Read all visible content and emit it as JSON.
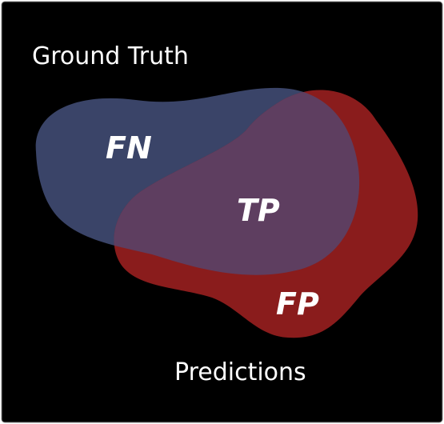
{
  "diagram": {
    "colors": {
      "background": "#000000",
      "ground_truth_fill": "#3a4468",
      "predictions_fill": "#8a1c1c",
      "overlap_fill": "#5e3e60",
      "text": "#ffffff"
    },
    "sets": {
      "ground_truth": {
        "label": "Ground Truth"
      },
      "predictions": {
        "label": "Predictions"
      }
    },
    "regions": {
      "false_negative": {
        "label": "FN"
      },
      "true_positive": {
        "label": "TP"
      },
      "false_positive": {
        "label": "FP"
      }
    }
  }
}
